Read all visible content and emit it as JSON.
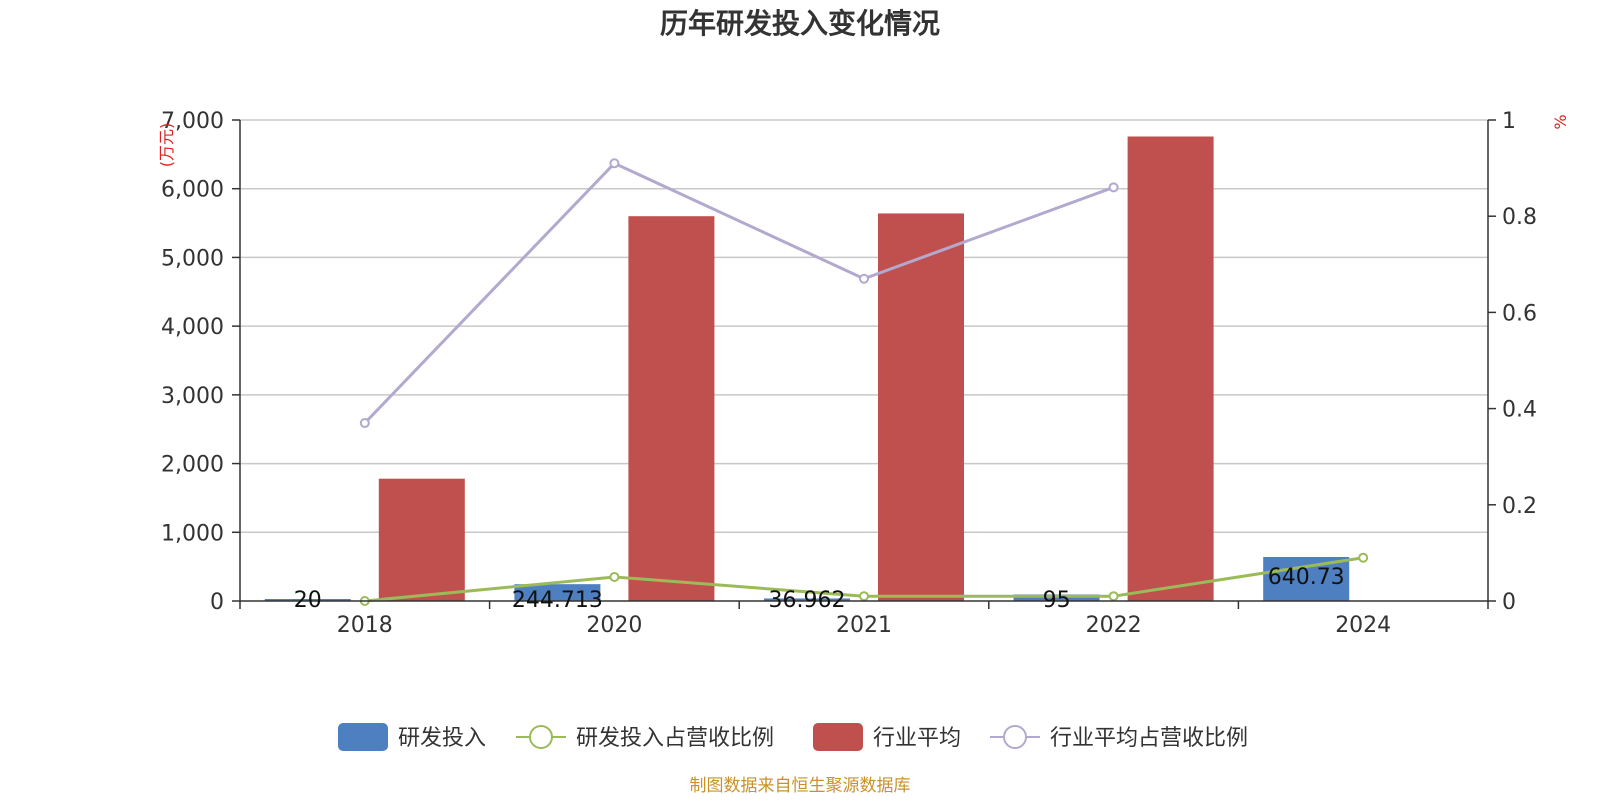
{
  "chart_data": {
    "type": "bar",
    "title": "历年研发投入变化情况",
    "categories": [
      "2018",
      "2020",
      "2021",
      "2022",
      "2024"
    ],
    "left_axis": {
      "unit": "(万元)",
      "ylim": [
        0,
        7000
      ],
      "ticks": [
        "0",
        "1,000",
        "2,000",
        "3,000",
        "4,000",
        "5,000",
        "6,000",
        "7,000"
      ]
    },
    "right_axis": {
      "unit": "%",
      "ylim": [
        0,
        1
      ],
      "ticks": [
        "0",
        "0.2",
        "0.4",
        "0.6",
        "0.8",
        "1"
      ]
    },
    "series": [
      {
        "name": "研发投入",
        "type": "bar",
        "axis": "left",
        "color": "#4e7fc1",
        "values": [
          20,
          244.713,
          36.962,
          95,
          640.73
        ],
        "labels": [
          "20",
          "244.713",
          "36.962",
          "95",
          "640.73"
        ]
      },
      {
        "name": "研发投入占营收比例",
        "type": "line",
        "axis": "right",
        "color": "#9bbb59",
        "values": [
          0.0,
          0.05,
          0.01,
          0.01,
          0.09
        ]
      },
      {
        "name": "行业平均",
        "type": "bar",
        "axis": "left",
        "color": "#c0504d",
        "values": [
          1780,
          5600,
          5640,
          6760,
          null
        ]
      },
      {
        "name": "行业平均占营收比例",
        "type": "line",
        "axis": "right",
        "color": "#b3a9cf",
        "values": [
          0.37,
          0.91,
          0.67,
          0.86,
          null
        ]
      }
    ],
    "grid": true,
    "legend": "bottom",
    "source": "制图数据来自恒生聚源数据库"
  }
}
